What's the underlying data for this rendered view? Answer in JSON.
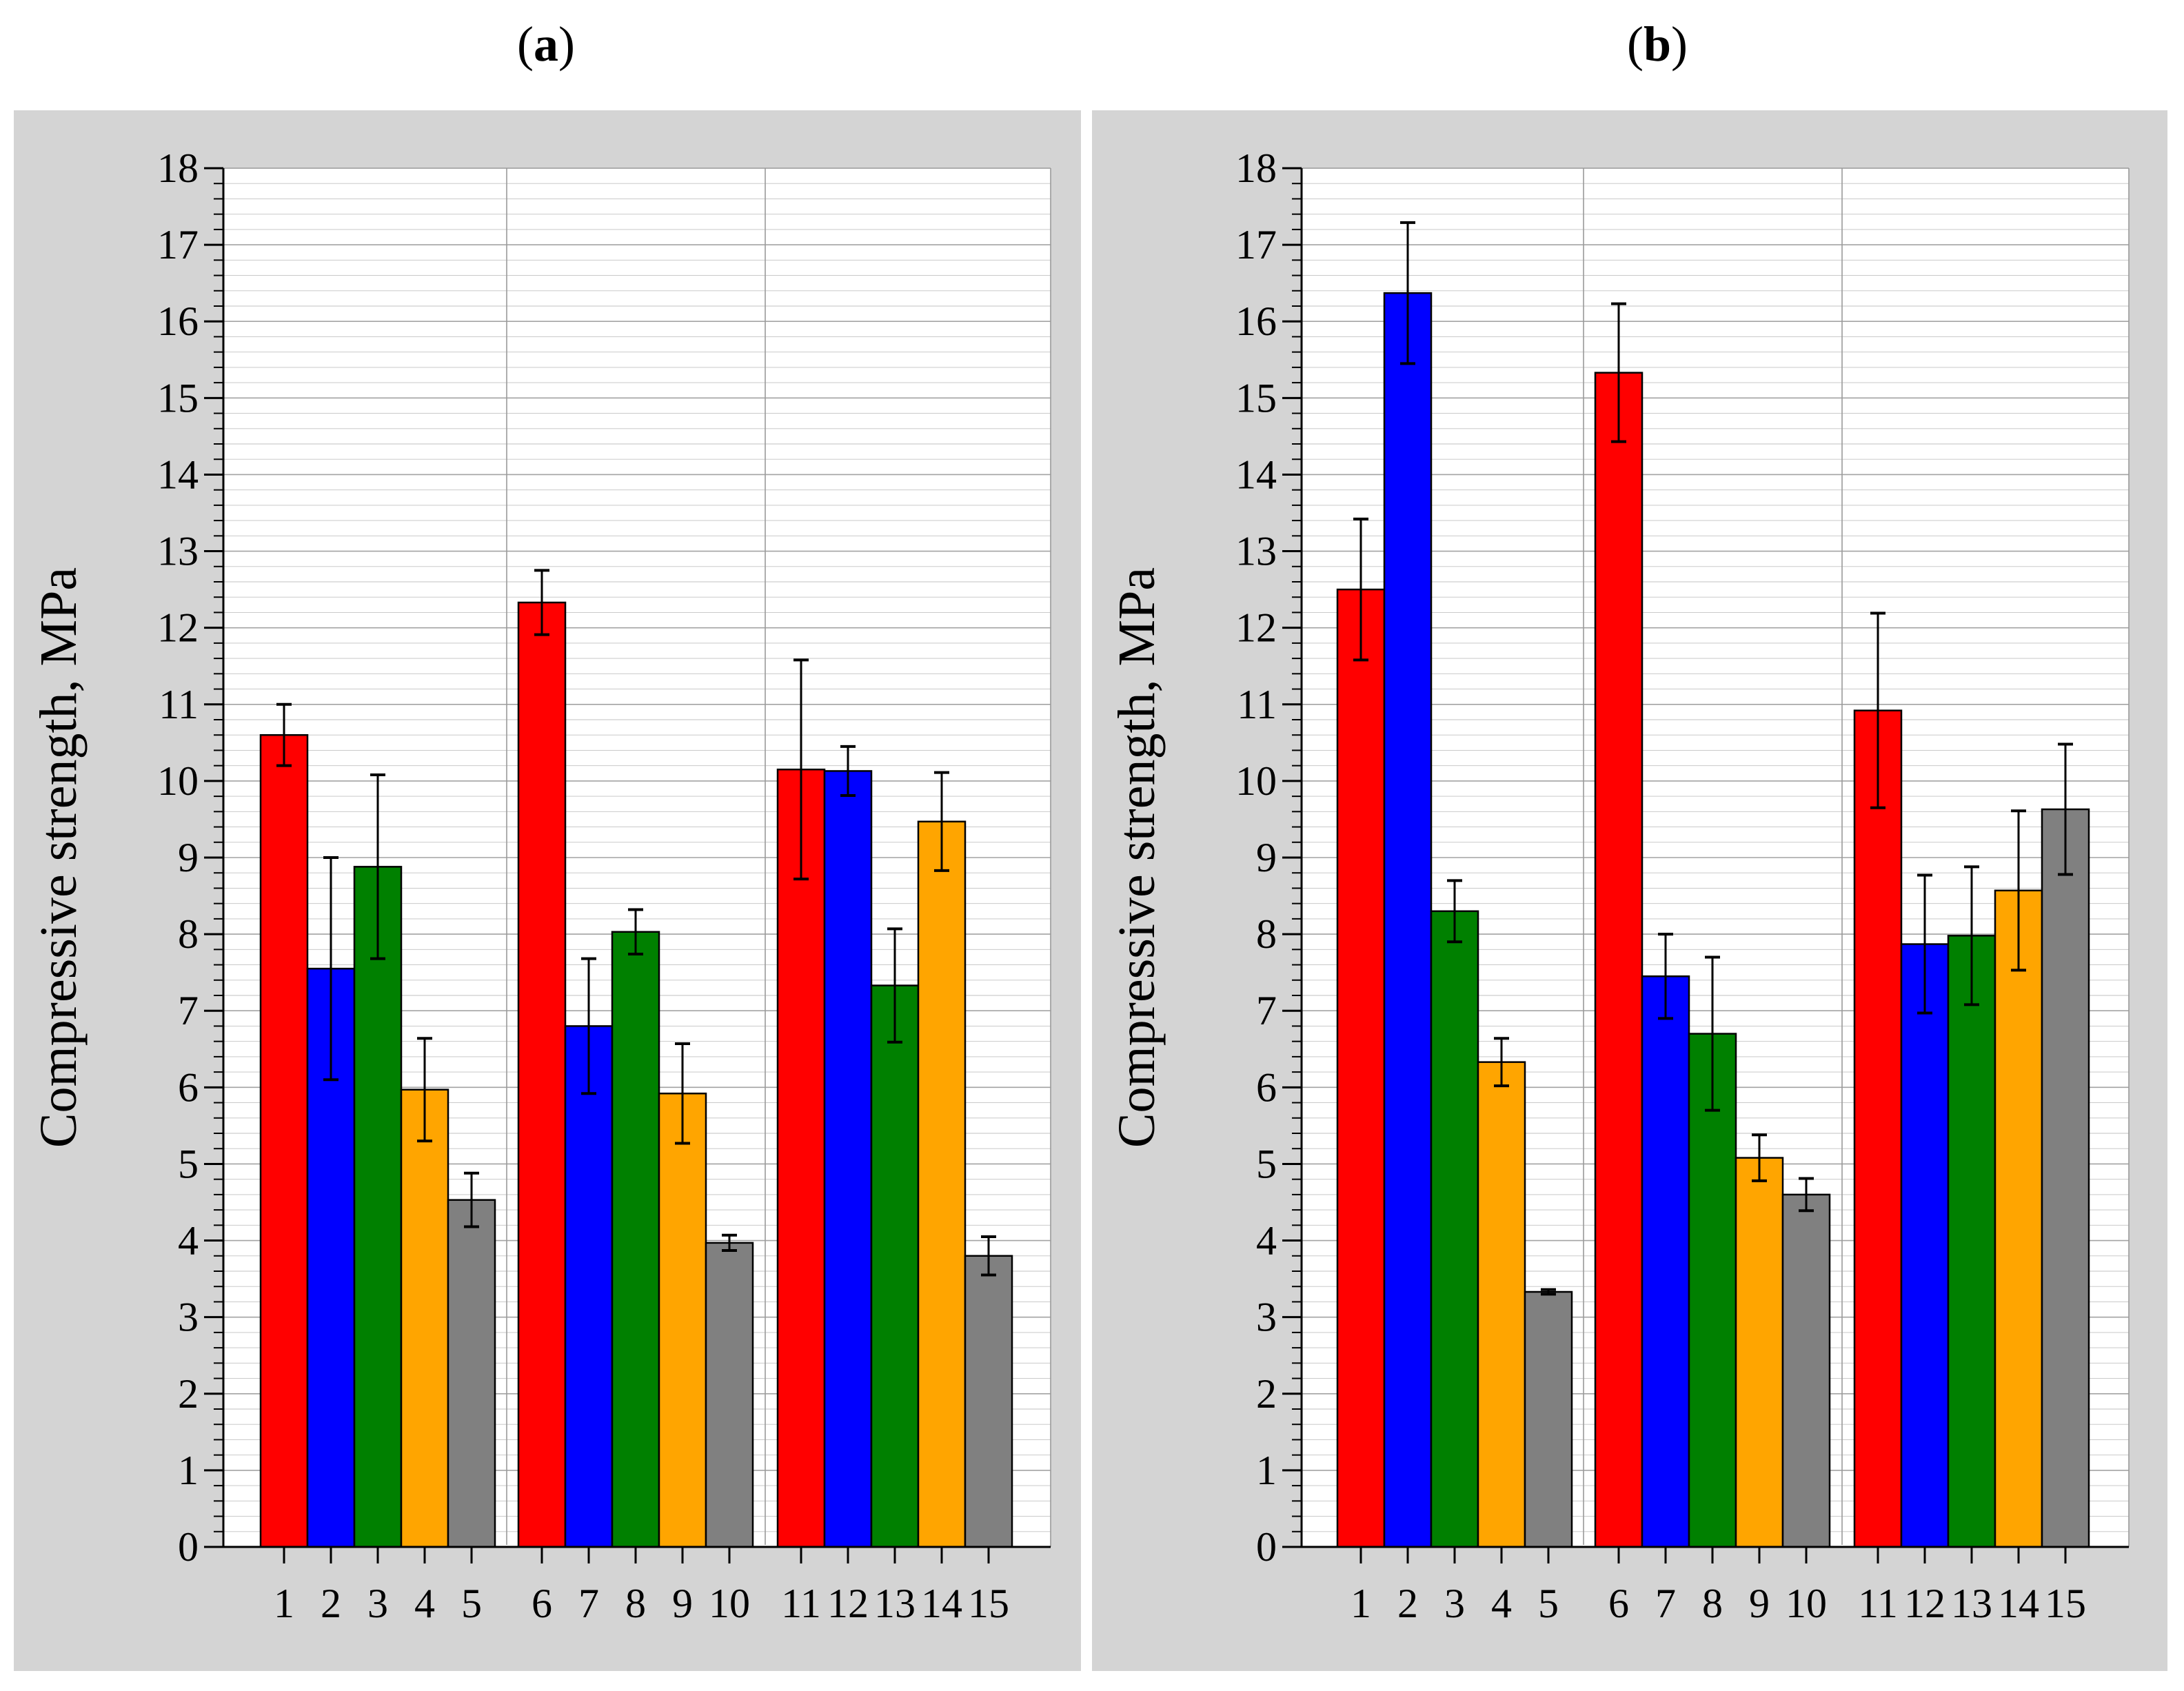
{
  "figure": {
    "background_color": "#d4d4d4",
    "plot_background_color": "#ffffff",
    "grid_color": "#9a9a9a",
    "series_colors": [
      "#ff0000",
      "#0000ff",
      "#008000",
      "#ffa500",
      "#808080"
    ]
  },
  "chart_data": [
    {
      "type": "bar",
      "panel_label": "a",
      "panel_label_open": "(",
      "panel_label_close": ")",
      "title": "",
      "xlabel": "",
      "ylabel": "Compressive strength, MPa",
      "ylim": [
        0,
        18
      ],
      "yticks": [
        "0",
        "1",
        "2",
        "3",
        "4",
        "5",
        "6",
        "7",
        "8",
        "9",
        "10",
        "11",
        "12",
        "13",
        "14",
        "15",
        "16",
        "17",
        "18"
      ],
      "grid": true,
      "error_bars": true,
      "categories": [
        "1",
        "2",
        "3",
        "4",
        "5",
        "6",
        "7",
        "8",
        "9",
        "10",
        "11",
        "12",
        "13",
        "14",
        "15"
      ],
      "groups": [
        [
          1,
          2,
          3,
          4,
          5
        ],
        [
          6,
          7,
          8,
          9,
          10
        ],
        [
          11,
          12,
          13,
          14,
          15
        ]
      ],
      "values": [
        10.6,
        7.55,
        8.88,
        5.97,
        4.53,
        12.33,
        6.8,
        8.03,
        5.92,
        3.97,
        10.15,
        10.13,
        7.33,
        9.47,
        3.8
      ],
      "errors": [
        0.4,
        1.45,
        1.2,
        0.67,
        0.35,
        0.42,
        0.88,
        0.29,
        0.65,
        0.1,
        1.43,
        0.32,
        0.74,
        0.64,
        0.25
      ]
    },
    {
      "type": "bar",
      "panel_label": "b",
      "panel_label_open": "(",
      "panel_label_close": ")",
      "title": "",
      "xlabel": "",
      "ylabel": "Compressive strength, MPa",
      "ylim": [
        0,
        18
      ],
      "yticks": [
        "0",
        "1",
        "2",
        "3",
        "4",
        "5",
        "6",
        "7",
        "8",
        "9",
        "10",
        "11",
        "12",
        "13",
        "14",
        "15",
        "16",
        "17",
        "18"
      ],
      "grid": true,
      "error_bars": true,
      "categories": [
        "1",
        "2",
        "3",
        "4",
        "5",
        "6",
        "7",
        "8",
        "9",
        "10",
        "11",
        "12",
        "13",
        "14",
        "15"
      ],
      "groups": [
        [
          1,
          2,
          3,
          4,
          5
        ],
        [
          6,
          7,
          8,
          9,
          10
        ],
        [
          11,
          12,
          13,
          14,
          15
        ]
      ],
      "values": [
        12.5,
        16.37,
        8.3,
        6.33,
        3.33,
        15.33,
        7.45,
        6.7,
        5.08,
        4.6,
        10.92,
        7.87,
        7.98,
        8.57,
        9.63
      ],
      "errors": [
        0.92,
        0.92,
        0.4,
        0.31,
        0.03,
        0.9,
        0.55,
        1.0,
        0.3,
        0.21,
        1.27,
        0.9,
        0.9,
        1.04,
        0.85
      ]
    }
  ]
}
